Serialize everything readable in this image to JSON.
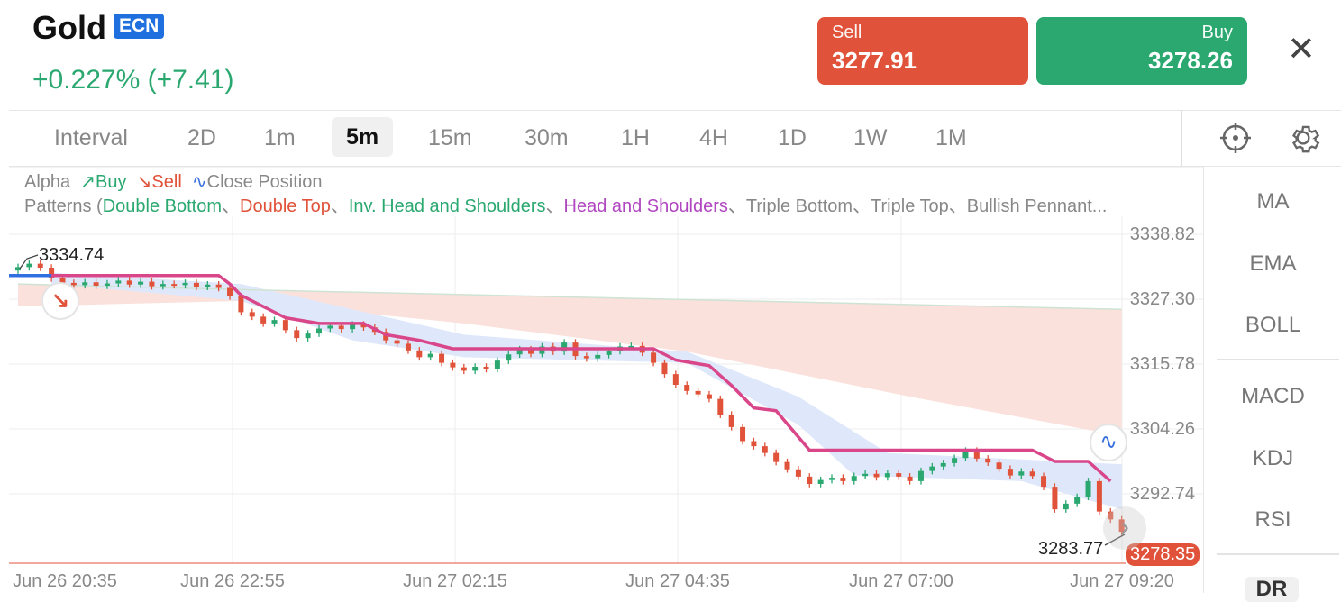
{
  "header": {
    "title": "Gold",
    "badge": "ECN",
    "change": "+0.227% (+7.41)"
  },
  "trade": {
    "sell_label": "Sell",
    "sell_price": "3277.91",
    "buy_label": "Buy",
    "buy_price": "3278.26",
    "sell_color": "#e0533a",
    "buy_color": "#2aa870"
  },
  "intervals": {
    "label": "Interval",
    "items": [
      "2D",
      "1m",
      "5m",
      "15m",
      "30m",
      "1H",
      "4H",
      "1D",
      "1W",
      "1M"
    ],
    "selected": "5m"
  },
  "legend": {
    "alpha": "Alpha",
    "buy": "Buy",
    "sell": "Sell",
    "close": "Close Position",
    "patterns_prefix": "Patterns (",
    "patterns": [
      "Double Bottom",
      "Double Top",
      "Inv. Head and Shoulders",
      "Head and Shoulders",
      "Triple Bottom",
      "Triple Top",
      "Bullish Pennant..."
    ],
    "sep": "、"
  },
  "sidebar": {
    "items": [
      "MA",
      "EMA",
      "BOLL",
      "MACD",
      "KDJ",
      "RSI",
      "DR"
    ]
  },
  "chart_data": {
    "type": "candlestick",
    "y_ticks": [
      "3338.82",
      "3327.30",
      "3315.78",
      "3304.26",
      "3292.74"
    ],
    "x_ticks": [
      "Jun 26 20:35",
      "Jun 26 22:55",
      "Jun 27 02:15",
      "Jun 27 04:35",
      "Jun 27 07:00",
      "Jun 27 09:20"
    ],
    "high_label": "3334.74",
    "low_label": "3283.77",
    "current_price": "3278.35",
    "first_open": 3332.4,
    "closes": [
      3333.0,
      3333.6,
      3332.9,
      3331.0,
      3330.2,
      3329.8,
      3330.3,
      3329.7,
      3330.1,
      3330.6,
      3329.9,
      3330.4,
      3329.6,
      3330.0,
      3329.8,
      3330.2,
      3329.5,
      3329.9,
      3329.3,
      3327.8,
      3325.0,
      3324.2,
      3323.0,
      3323.6,
      3321.8,
      3320.4,
      3321.2,
      3322.1,
      3322.6,
      3322.0,
      3322.8,
      3322.3,
      3321.5,
      3320.0,
      3319.4,
      3318.2,
      3317.0,
      3317.6,
      3316.0,
      3315.2,
      3314.6,
      3315.3,
      3314.9,
      3316.4,
      3317.5,
      3318.4,
      3317.6,
      3318.9,
      3318.0,
      3319.6,
      3317.2,
      3316.8,
      3317.4,
      3318.1,
      3318.9,
      3319.0,
      3317.8,
      3316.0,
      3314.0,
      3312.1,
      3311.0,
      3310.4,
      3309.6,
      3306.8,
      3304.6,
      3302.1,
      3301.2,
      3300.0,
      3298.4,
      3297.1,
      3295.8,
      3294.5,
      3295.2,
      3295.6,
      3295.0,
      3295.9,
      3296.3,
      3295.7,
      3296.4,
      3295.8,
      3295.0,
      3296.8,
      3297.6,
      3298.2,
      3299.1,
      3300.4,
      3299.0,
      3298.3,
      3297.2,
      3296.0,
      3296.7,
      3295.9,
      3294.0,
      3290.0,
      3291.0,
      3292.2,
      3295.0,
      3289.6,
      3288.2,
      3286.0
    ],
    "trend_line": [
      [
        0,
        3331.5
      ],
      [
        18,
        3331.5
      ],
      [
        19,
        3330
      ],
      [
        20,
        3328
      ],
      [
        22,
        3326
      ],
      [
        24,
        3324
      ],
      [
        27,
        3323
      ],
      [
        31,
        3323
      ],
      [
        33,
        3321
      ],
      [
        36,
        3320
      ],
      [
        39,
        3318.5
      ],
      [
        57,
        3318.5
      ],
      [
        59,
        3316.5
      ],
      [
        62,
        3315.5
      ],
      [
        64,
        3312
      ],
      [
        66,
        3308
      ],
      [
        68,
        3307.5
      ],
      [
        71,
        3300.5
      ],
      [
        91,
        3300.5
      ],
      [
        93,
        3298.5
      ],
      [
        96,
        3298.5
      ],
      [
        98,
        3295
      ]
    ],
    "blue_band_upper": [
      [
        3,
        3332
      ],
      [
        20,
        3330
      ],
      [
        40,
        3321
      ],
      [
        60,
        3318
      ],
      [
        70,
        3310
      ],
      [
        78,
        3300
      ],
      [
        99,
        3298
      ]
    ],
    "blue_band_lower": [
      [
        3,
        3330
      ],
      [
        20,
        3327
      ],
      [
        30,
        3320
      ],
      [
        40,
        3317
      ],
      [
        60,
        3316
      ],
      [
        70,
        3305
      ],
      [
        75,
        3296
      ],
      [
        90,
        3295
      ],
      [
        99,
        3290
      ]
    ],
    "pink_band_upper": [
      [
        0,
        3330
      ],
      [
        20,
        3329
      ],
      [
        99,
        3325.5
      ]
    ],
    "pink_band_lower": [
      [
        0,
        3326
      ],
      [
        20,
        3327
      ],
      [
        40,
        3323
      ],
      [
        60,
        3318
      ],
      [
        80,
        3310
      ],
      [
        99,
        3303
      ]
    ],
    "colors": {
      "up": "#2aa870",
      "down": "#e0533a",
      "trend": "#d9468a",
      "blue_band": "#dfe8fb",
      "pink_band": "#fbe1dc"
    }
  }
}
